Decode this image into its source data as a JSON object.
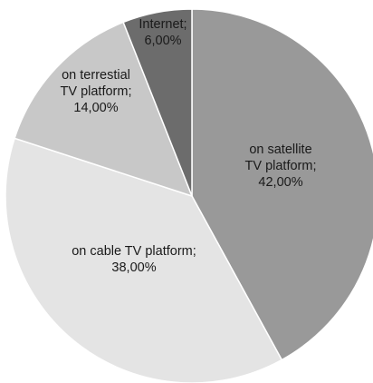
{
  "chart_data": {
    "type": "pie",
    "title": "",
    "slices": [
      {
        "label_lines": [
          "on satellite",
          "TV platform;",
          "42,00%"
        ],
        "value": 42,
        "color": "#999999"
      },
      {
        "label_lines": [
          "on cable TV platform;",
          "38,00%"
        ],
        "value": 38,
        "color": "#e4e4e4"
      },
      {
        "label_lines": [
          "on terrestial",
          "TV platform;",
          "14,00%"
        ],
        "value": 14,
        "color": "#c8c8c8"
      },
      {
        "label_lines": [
          "Internet;",
          "6,00%"
        ],
        "value": 6,
        "color": "#6c6c6c"
      }
    ],
    "start": "12 o'clock",
    "direction": "clockwise",
    "legend": "none"
  }
}
